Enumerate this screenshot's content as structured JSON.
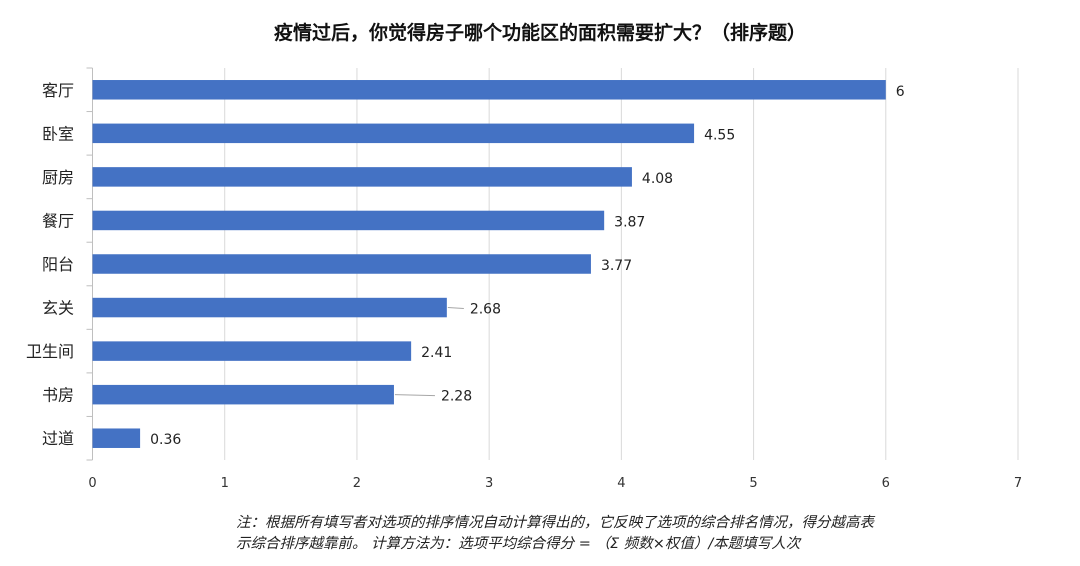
{
  "chart_data": {
    "type": "bar",
    "orientation": "horizontal",
    "title": "疫情过后，你觉得房子哪个功能区的面积需要扩大？（排序题）",
    "categories": [
      "客厅",
      "卧室",
      "厨房",
      "餐厅",
      "阳台",
      "玄关",
      "卫生间",
      "书房",
      "过道"
    ],
    "values": [
      6,
      4.55,
      4.08,
      3.87,
      3.77,
      2.68,
      2.41,
      2.28,
      0.36
    ],
    "data_labels": [
      "6",
      "4.55",
      "4.08",
      "3.87",
      "3.77",
      "2.68",
      "2.41",
      "2.28",
      "0.36"
    ],
    "xlabel": "",
    "ylabel": "",
    "xlim": [
      0,
      7
    ],
    "xticks": [
      "0",
      "1",
      "2",
      "3",
      "4",
      "5",
      "6",
      "7"
    ],
    "grid": "vertical",
    "legend": "none",
    "bar_color": "#4472C4"
  },
  "note": {
    "line1": "注：根据所有填写者对选项的排序情况自动计算得出的，它反映了选项的综合排名情况，得分越高表",
    "line2": "示综合排序越靠前。 计算方法为：选项平均综合得分 = （Σ 频数×权值）/本题填写人次"
  }
}
